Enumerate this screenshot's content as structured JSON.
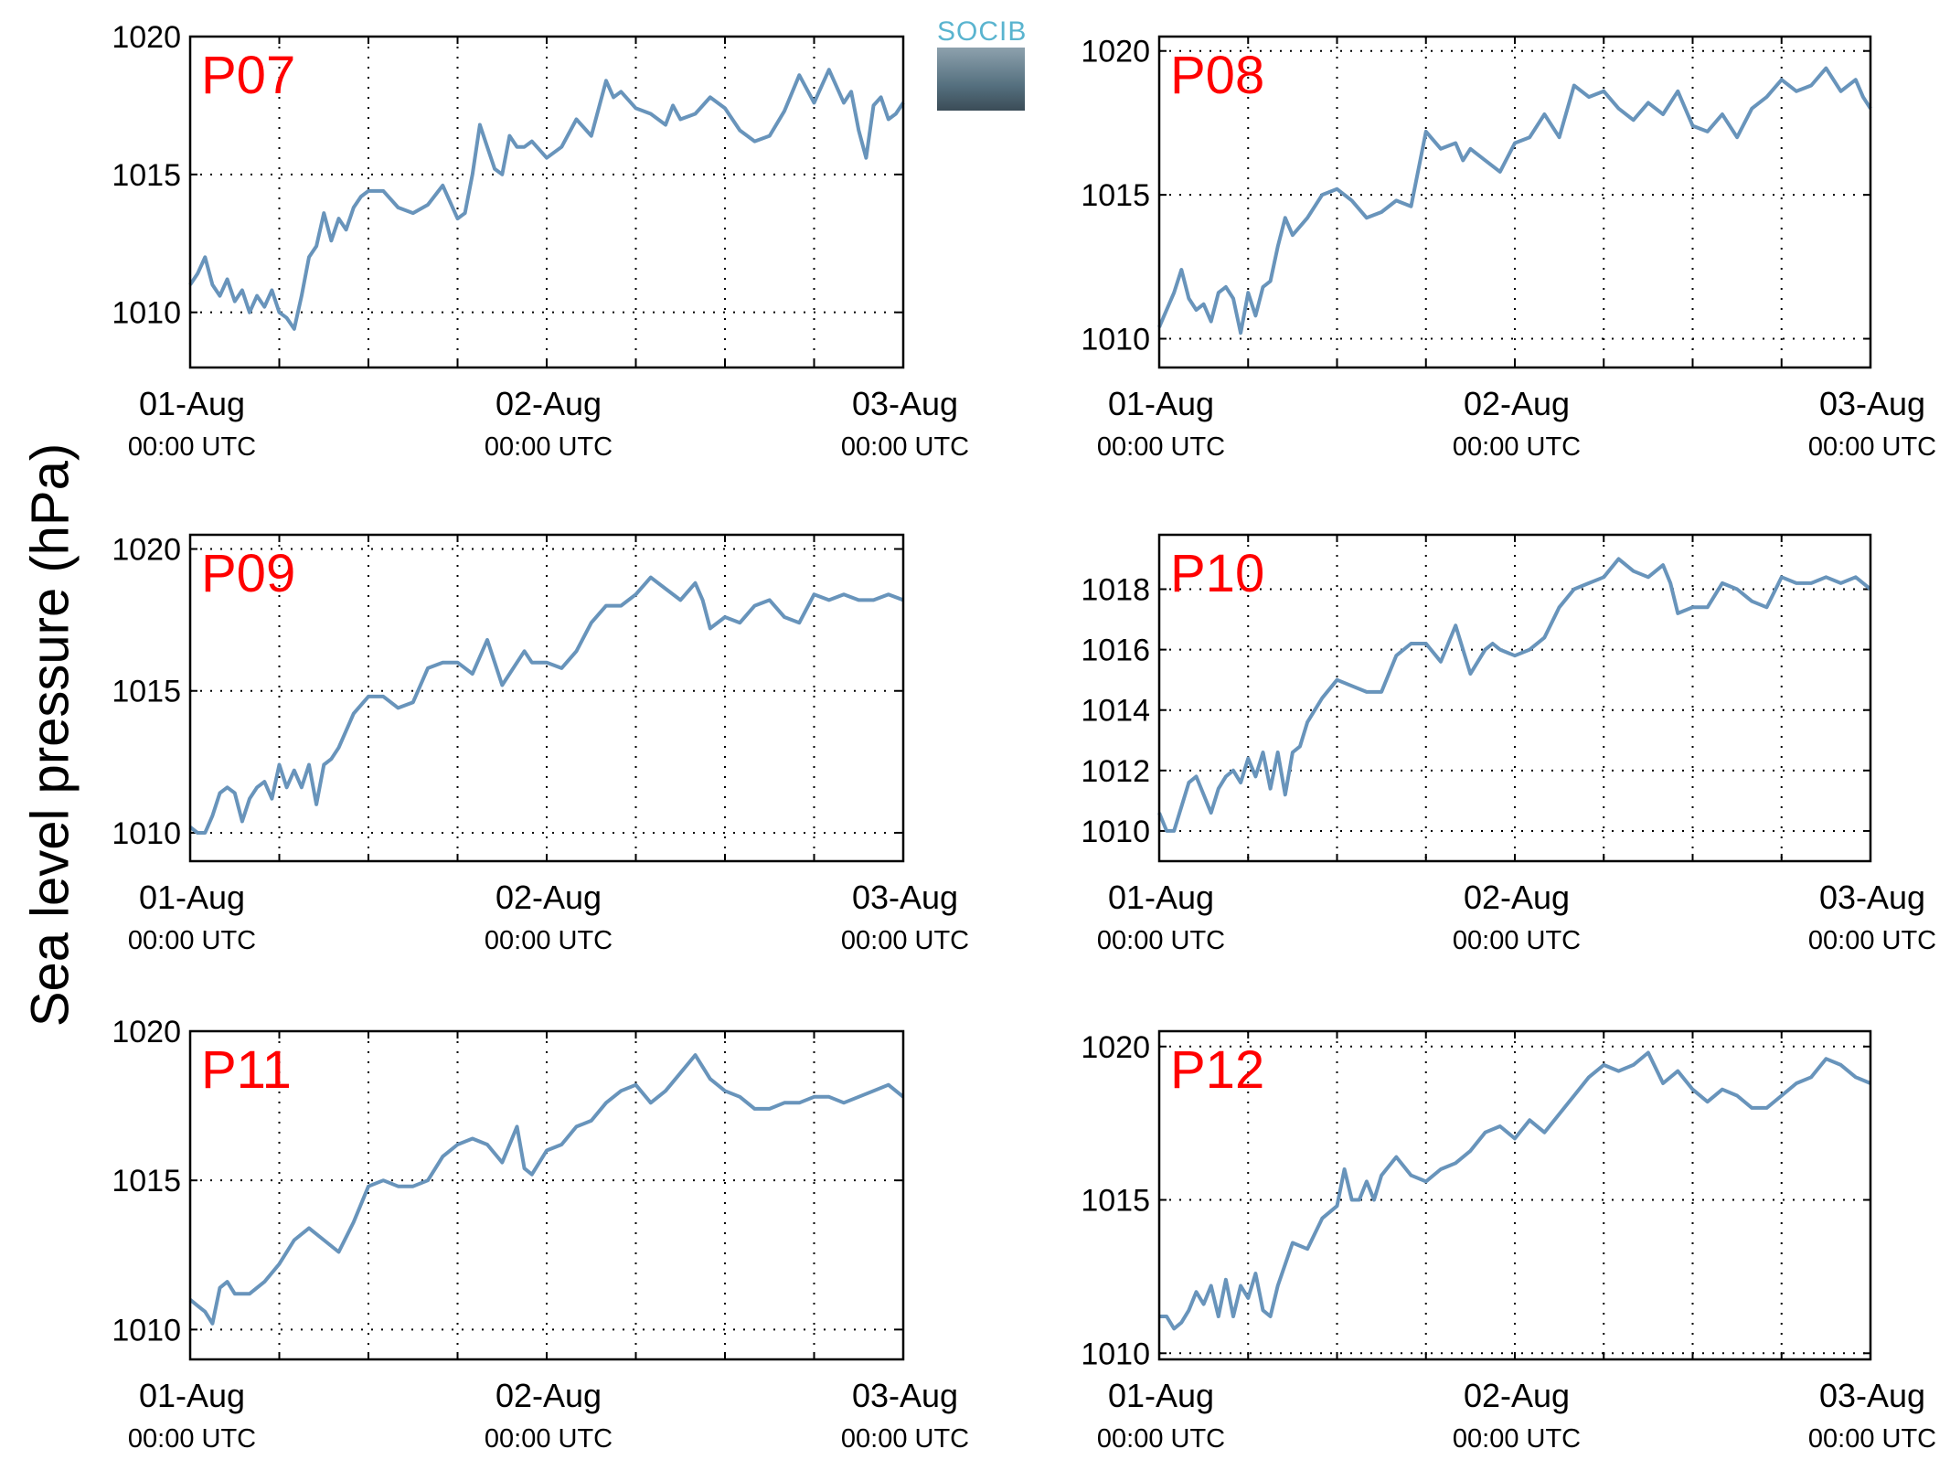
{
  "ylabel": "Sea level pressure (hPa)",
  "logo_text": "SOCIB",
  "colors": {
    "line": "#6894bb",
    "title": "#ff0000",
    "grid": "#000000"
  },
  "chart_data": [
    {
      "type": "line",
      "title": "P07",
      "xlim": [
        0,
        48
      ],
      "ylim": [
        1008,
        1020
      ],
      "yticks": [
        1010,
        1015,
        1020
      ],
      "xticks": [
        {
          "pos": 0,
          "date": "01-Aug",
          "time": "00:00 UTC"
        },
        {
          "pos": 24,
          "date": "02-Aug",
          "time": "00:00 UTC"
        },
        {
          "pos": 48,
          "date": "03-Aug",
          "time": "00:00 UTC"
        }
      ],
      "xgrid": [
        6,
        12,
        18,
        24,
        30,
        36,
        42
      ],
      "x": [
        0,
        0.5,
        1,
        1.5,
        2,
        2.5,
        3,
        3.5,
        4,
        4.5,
        5,
        5.5,
        6,
        6.5,
        7,
        7.5,
        8,
        8.5,
        9,
        9.5,
        10,
        10.5,
        11,
        11.5,
        12,
        13,
        14,
        15,
        16,
        17,
        18,
        18.5,
        19,
        19.5,
        20,
        20.5,
        21,
        21.5,
        22,
        22.5,
        23,
        24,
        25,
        26,
        27,
        28,
        28.5,
        29,
        30,
        31,
        32,
        32.5,
        33,
        34,
        35,
        36,
        37,
        38,
        39,
        40,
        41,
        42,
        43,
        44,
        44.5,
        45,
        45.5,
        46,
        46.5,
        47,
        47.5,
        48
      ],
      "y": [
        1011,
        1011.4,
        1012,
        1011,
        1010.6,
        1011.2,
        1010.4,
        1010.8,
        1010,
        1010.6,
        1010.2,
        1010.8,
        1010,
        1009.8,
        1009.4,
        1010.6,
        1012,
        1012.4,
        1013.6,
        1012.6,
        1013.4,
        1013,
        1013.8,
        1014.2,
        1014.4,
        1014.4,
        1013.8,
        1013.6,
        1013.9,
        1014.6,
        1013.4,
        1013.6,
        1015,
        1016.8,
        1016,
        1015.2,
        1015,
        1016.4,
        1016,
        1016,
        1016.2,
        1015.6,
        1016,
        1017,
        1016.4,
        1018.4,
        1017.8,
        1018,
        1017.4,
        1017.2,
        1016.8,
        1017.5,
        1017,
        1017.2,
        1017.8,
        1017.4,
        1016.6,
        1016.2,
        1016.4,
        1017.3,
        1018.6,
        1017.6,
        1018.8,
        1017.6,
        1018,
        1016.6,
        1015.6,
        1017.5,
        1017.8,
        1017,
        1017.2,
        1017.6
      ]
    },
    {
      "type": "line",
      "title": "P08",
      "xlim": [
        0,
        48
      ],
      "ylim": [
        1009,
        1020.5
      ],
      "yticks": [
        1010,
        1015,
        1020
      ],
      "xticks": [
        {
          "pos": 0,
          "date": "01-Aug",
          "time": "00:00 UTC"
        },
        {
          "pos": 24,
          "date": "02-Aug",
          "time": "00:00 UTC"
        },
        {
          "pos": 48,
          "date": "03-Aug",
          "time": "00:00 UTC"
        }
      ],
      "xgrid": [
        6,
        12,
        18,
        24,
        30,
        36,
        42
      ],
      "x": [
        0,
        0.5,
        1,
        1.5,
        2,
        2.5,
        3,
        3.5,
        4,
        4.5,
        5,
        5.5,
        6,
        6.5,
        7,
        7.5,
        8,
        8.5,
        9,
        10,
        11,
        12,
        13,
        14,
        15,
        16,
        17,
        18,
        19,
        20,
        20.5,
        21,
        22,
        23,
        24,
        25,
        26,
        27,
        28,
        29,
        30,
        31,
        32,
        33,
        34,
        35,
        36,
        37,
        38,
        39,
        40,
        41,
        42,
        43,
        44,
        45,
        46,
        47,
        47.5,
        48
      ],
      "y": [
        1010.4,
        1011,
        1011.6,
        1012.4,
        1011.4,
        1011,
        1011.2,
        1010.6,
        1011.6,
        1011.8,
        1011.4,
        1010.2,
        1011.6,
        1010.8,
        1011.8,
        1012,
        1013.2,
        1014.2,
        1013.6,
        1014.2,
        1015,
        1015.2,
        1014.8,
        1014.2,
        1014.4,
        1014.8,
        1014.6,
        1017.2,
        1016.6,
        1016.8,
        1016.2,
        1016.6,
        1016.2,
        1015.8,
        1016.8,
        1017,
        1017.8,
        1017,
        1018.8,
        1018.4,
        1018.6,
        1018,
        1017.6,
        1018.2,
        1017.8,
        1018.6,
        1017.4,
        1017.2,
        1017.8,
        1017,
        1018,
        1018.4,
        1019,
        1018.6,
        1018.8,
        1019.4,
        1018.6,
        1019,
        1018.4,
        1018
      ]
    },
    {
      "type": "line",
      "title": "P09",
      "xlim": [
        0,
        48
      ],
      "ylim": [
        1009,
        1020.5
      ],
      "yticks": [
        1010,
        1015,
        1020
      ],
      "xticks": [
        {
          "pos": 0,
          "date": "01-Aug",
          "time": "00:00 UTC"
        },
        {
          "pos": 24,
          "date": "02-Aug",
          "time": "00:00 UTC"
        },
        {
          "pos": 48,
          "date": "03-Aug",
          "time": "00:00 UTC"
        }
      ],
      "xgrid": [
        6,
        12,
        18,
        24,
        30,
        36,
        42
      ],
      "x": [
        0,
        0.5,
        1,
        1.5,
        2,
        2.5,
        3,
        3.5,
        4,
        4.5,
        5,
        5.5,
        6,
        6.5,
        7,
        7.5,
        8,
        8.5,
        9,
        9.5,
        10,
        11,
        12,
        13,
        14,
        15,
        16,
        17,
        18,
        19,
        20,
        21,
        22,
        22.5,
        23,
        24,
        25,
        26,
        27,
        28,
        29,
        30,
        31,
        32,
        33,
        34,
        34.5,
        35,
        36,
        37,
        38,
        39,
        40,
        41,
        42,
        43,
        44,
        45,
        46,
        47,
        48
      ],
      "y": [
        1010.2,
        1010,
        1010,
        1010.6,
        1011.4,
        1011.6,
        1011.4,
        1010.4,
        1011.2,
        1011.6,
        1011.8,
        1011.2,
        1012.4,
        1011.6,
        1012.2,
        1011.6,
        1012.4,
        1011,
        1012.4,
        1012.6,
        1013,
        1014.2,
        1014.8,
        1014.8,
        1014.4,
        1014.6,
        1015.8,
        1016,
        1016,
        1015.6,
        1016.8,
        1015.2,
        1016,
        1016.4,
        1016,
        1016,
        1015.8,
        1016.4,
        1017.4,
        1018,
        1018,
        1018.4,
        1019,
        1018.6,
        1018.2,
        1018.8,
        1018.2,
        1017.2,
        1017.6,
        1017.4,
        1018,
        1018.2,
        1017.6,
        1017.4,
        1018.4,
        1018.2,
        1018.4,
        1018.2,
        1018.2,
        1018.4,
        1018.2
      ]
    },
    {
      "type": "line",
      "title": "P10",
      "xlim": [
        0,
        48
      ],
      "ylim": [
        1009,
        1019.8
      ],
      "yticks": [
        1010,
        1012,
        1014,
        1016,
        1018
      ],
      "xticks": [
        {
          "pos": 0,
          "date": "01-Aug",
          "time": "00:00 UTC"
        },
        {
          "pos": 24,
          "date": "02-Aug",
          "time": "00:00 UTC"
        },
        {
          "pos": 48,
          "date": "03-Aug",
          "time": "00:00 UTC"
        }
      ],
      "xgrid": [
        6,
        12,
        18,
        24,
        30,
        36,
        42
      ],
      "x": [
        0,
        0.5,
        1,
        1.5,
        2,
        2.5,
        3,
        3.5,
        4,
        4.5,
        5,
        5.5,
        6,
        6.5,
        7,
        7.5,
        8,
        8.5,
        9,
        9.5,
        10,
        11,
        12,
        13,
        14,
        15,
        16,
        17,
        18,
        19,
        20,
        21,
        22,
        22.5,
        23,
        24,
        25,
        26,
        27,
        28,
        29,
        30,
        31,
        32,
        33,
        34,
        34.5,
        35,
        36,
        37,
        38,
        39,
        40,
        41,
        42,
        43,
        44,
        45,
        46,
        47,
        48
      ],
      "y": [
        1010.6,
        1010,
        1010,
        1010.8,
        1011.6,
        1011.8,
        1011.2,
        1010.6,
        1011.4,
        1011.8,
        1012,
        1011.6,
        1012.4,
        1011.8,
        1012.6,
        1011.4,
        1012.6,
        1011.2,
        1012.6,
        1012.8,
        1013.6,
        1014.4,
        1015,
        1014.8,
        1014.6,
        1014.6,
        1015.8,
        1016.2,
        1016.2,
        1015.6,
        1016.8,
        1015.2,
        1016,
        1016.2,
        1016,
        1015.8,
        1016,
        1016.4,
        1017.4,
        1018,
        1018.2,
        1018.4,
        1019,
        1018.6,
        1018.4,
        1018.8,
        1018.2,
        1017.2,
        1017.4,
        1017.4,
        1018.2,
        1018,
        1017.6,
        1017.4,
        1018.4,
        1018.2,
        1018.2,
        1018.4,
        1018.2,
        1018.4,
        1018
      ]
    },
    {
      "type": "line",
      "title": "P11",
      "xlim": [
        0,
        48
      ],
      "ylim": [
        1009,
        1020
      ],
      "yticks": [
        1010,
        1015,
        1020
      ],
      "xticks": [
        {
          "pos": 0,
          "date": "01-Aug",
          "time": "00:00 UTC"
        },
        {
          "pos": 24,
          "date": "02-Aug",
          "time": "00:00 UTC"
        },
        {
          "pos": 48,
          "date": "03-Aug",
          "time": "00:00 UTC"
        }
      ],
      "xgrid": [
        6,
        12,
        18,
        24,
        30,
        36,
        42
      ],
      "x": [
        0,
        0.5,
        1,
        1.5,
        2,
        2.5,
        3,
        4,
        5,
        6,
        7,
        8,
        9,
        10,
        11,
        12,
        13,
        14,
        15,
        16,
        17,
        18,
        19,
        20,
        21,
        22,
        22.5,
        23,
        24,
        25,
        26,
        27,
        28,
        29,
        30,
        31,
        32,
        33,
        34,
        35,
        36,
        37,
        38,
        39,
        40,
        41,
        42,
        43,
        44,
        45,
        46,
        47,
        48
      ],
      "y": [
        1011,
        1010.8,
        1010.6,
        1010.2,
        1011.4,
        1011.6,
        1011.2,
        1011.2,
        1011.6,
        1012.2,
        1013,
        1013.4,
        1013,
        1012.6,
        1013.6,
        1014.8,
        1015,
        1014.8,
        1014.8,
        1015,
        1015.8,
        1016.2,
        1016.4,
        1016.2,
        1015.6,
        1016.8,
        1015.4,
        1015.2,
        1016,
        1016.2,
        1016.8,
        1017,
        1017.6,
        1018,
        1018.2,
        1017.6,
        1018,
        1018.6,
        1019.2,
        1018.4,
        1018,
        1017.8,
        1017.4,
        1017.4,
        1017.6,
        1017.6,
        1017.8,
        1017.8,
        1017.6,
        1017.8,
        1018,
        1018.2,
        1017.8
      ]
    },
    {
      "type": "line",
      "title": "P12",
      "xlim": [
        0,
        48
      ],
      "ylim": [
        1009.8,
        1020.5
      ],
      "yticks": [
        1010,
        1015,
        1020
      ],
      "xticks": [
        {
          "pos": 0,
          "date": "01-Aug",
          "time": "00:00 UTC"
        },
        {
          "pos": 24,
          "date": "02-Aug",
          "time": "00:00 UTC"
        },
        {
          "pos": 48,
          "date": "03-Aug",
          "time": "00:00 UTC"
        }
      ],
      "xgrid": [
        6,
        12,
        18,
        24,
        30,
        36,
        42
      ],
      "x": [
        0,
        0.5,
        1,
        1.5,
        2,
        2.5,
        3,
        3.5,
        4,
        4.5,
        5,
        5.5,
        6,
        6.5,
        7,
        7.5,
        8,
        9,
        10,
        11,
        12,
        12.5,
        13,
        13.5,
        14,
        14.5,
        15,
        16,
        17,
        18,
        19,
        20,
        21,
        22,
        23,
        24,
        25,
        26,
        27,
        28,
        29,
        30,
        31,
        32,
        33,
        34,
        35,
        36,
        37,
        38,
        39,
        40,
        41,
        42,
        43,
        44,
        45,
        46,
        47,
        48
      ],
      "y": [
        1011.2,
        1011.2,
        1010.8,
        1011,
        1011.4,
        1012,
        1011.6,
        1012.2,
        1011.2,
        1012.4,
        1011.2,
        1012.2,
        1011.8,
        1012.6,
        1011.4,
        1011.2,
        1012.2,
        1013.6,
        1013.4,
        1014.4,
        1014.8,
        1016,
        1015,
        1015,
        1015.6,
        1015,
        1015.8,
        1016.4,
        1015.8,
        1015.6,
        1016,
        1016.2,
        1016.6,
        1017.2,
        1017.4,
        1017,
        1017.6,
        1017.2,
        1017.8,
        1018.4,
        1019,
        1019.4,
        1019.2,
        1019.4,
        1019.8,
        1018.8,
        1019.2,
        1018.6,
        1018.2,
        1018.6,
        1018.4,
        1018,
        1018,
        1018.4,
        1018.8,
        1019,
        1019.6,
        1019.4,
        1019,
        1018.8
      ]
    }
  ]
}
